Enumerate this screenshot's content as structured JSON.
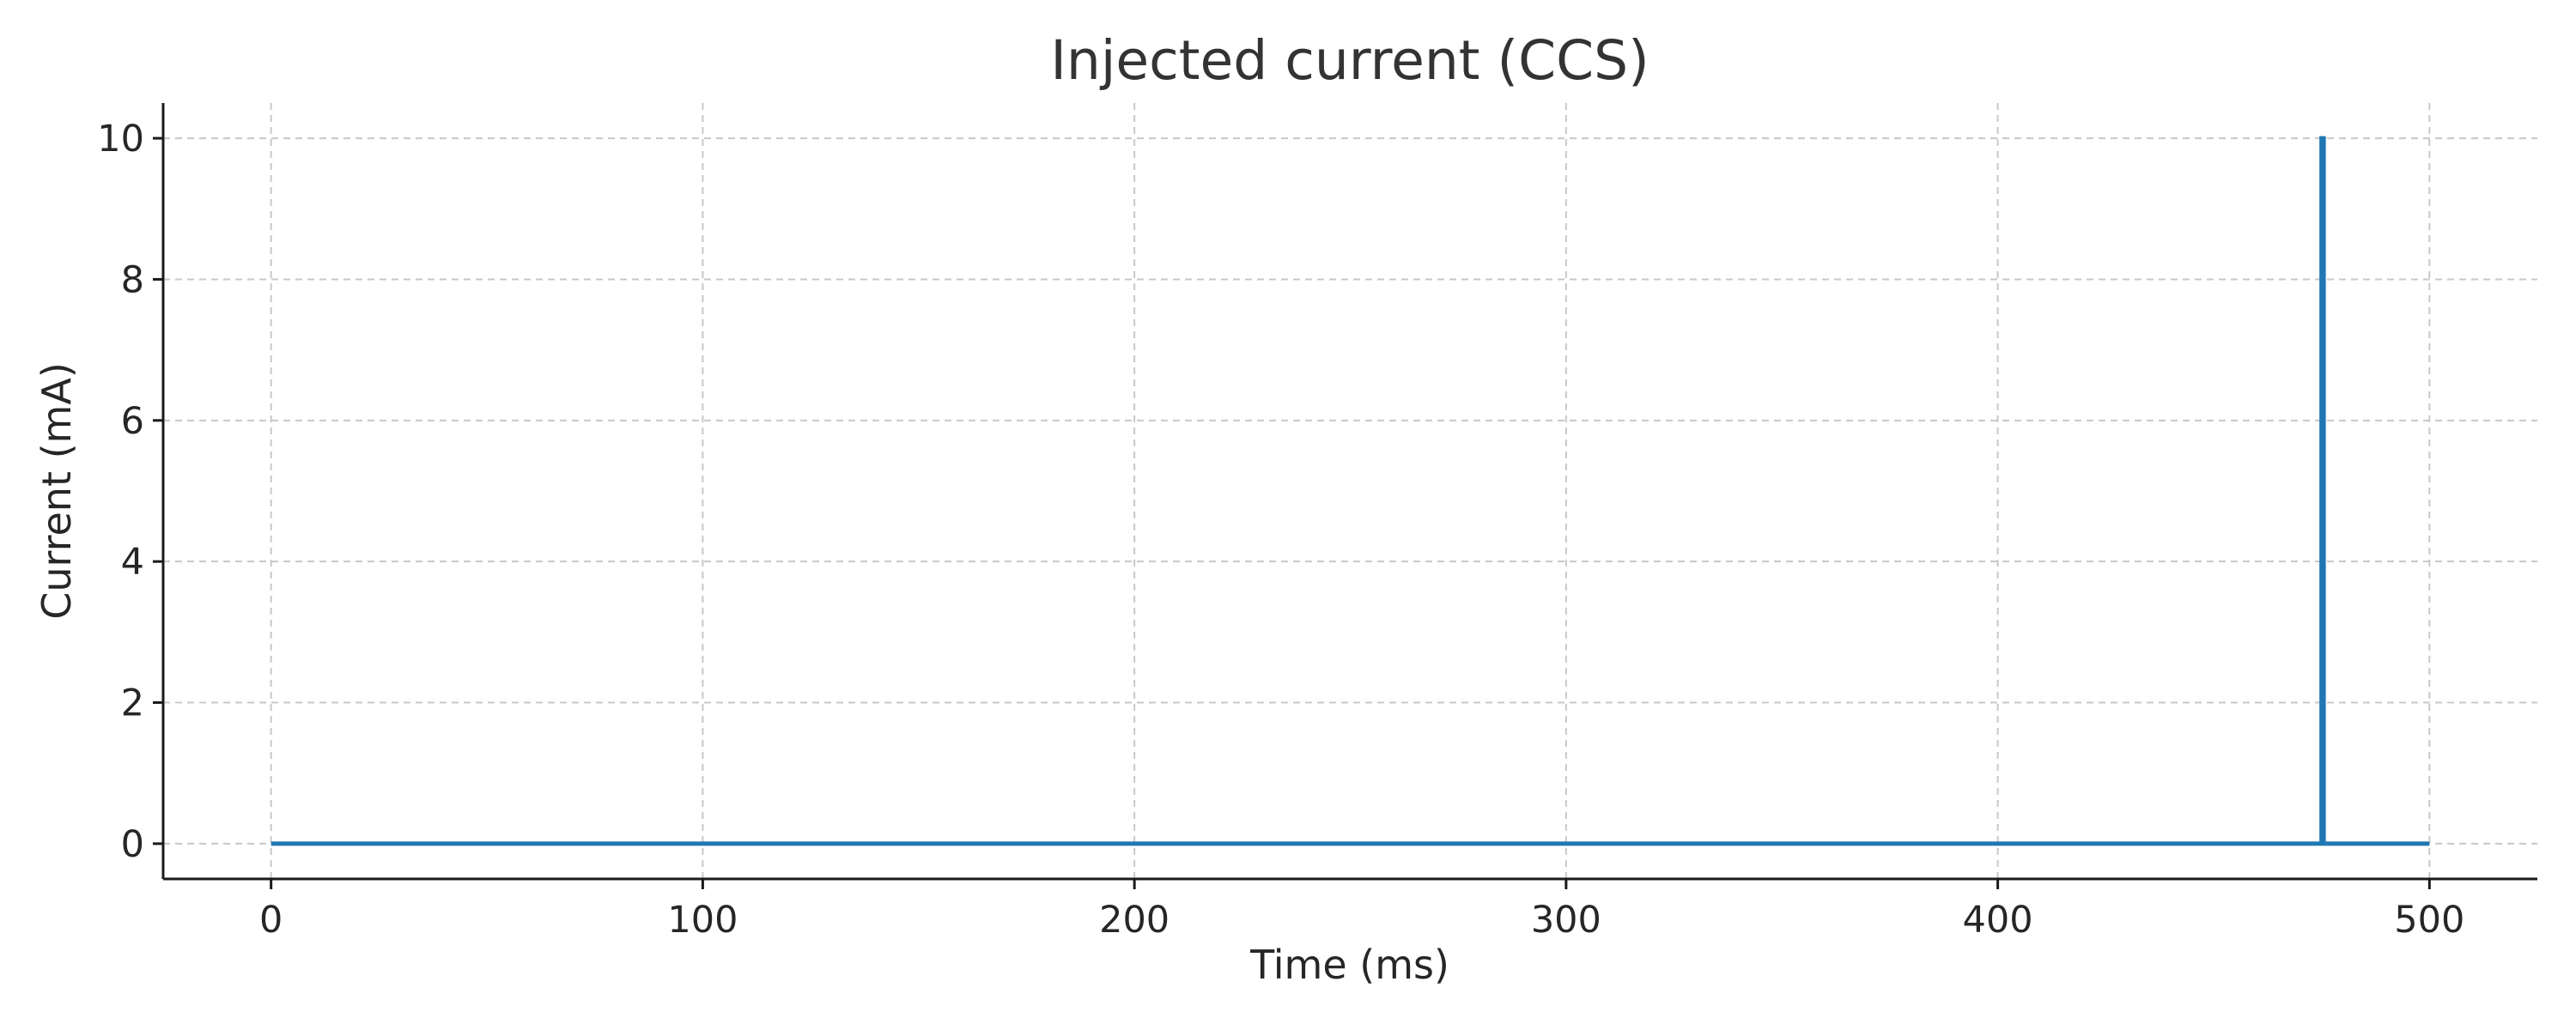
{
  "chart_data": {
    "type": "line",
    "title": "Injected current (CCS)",
    "xlabel": "Time (ms)",
    "ylabel": "Current (mA)",
    "xlim": [
      -25,
      525
    ],
    "ylim": [
      -0.5,
      10.5
    ],
    "xticks": [
      0,
      100,
      200,
      300,
      400,
      500
    ],
    "yticks": [
      0,
      2,
      4,
      6,
      8,
      10
    ],
    "grid": true,
    "series": [
      {
        "color": "#1f77b4",
        "x": [
          0,
          475,
          475,
          475.5,
          475.5,
          500
        ],
        "y": [
          0,
          0,
          10,
          10,
          0,
          0
        ]
      }
    ]
  }
}
